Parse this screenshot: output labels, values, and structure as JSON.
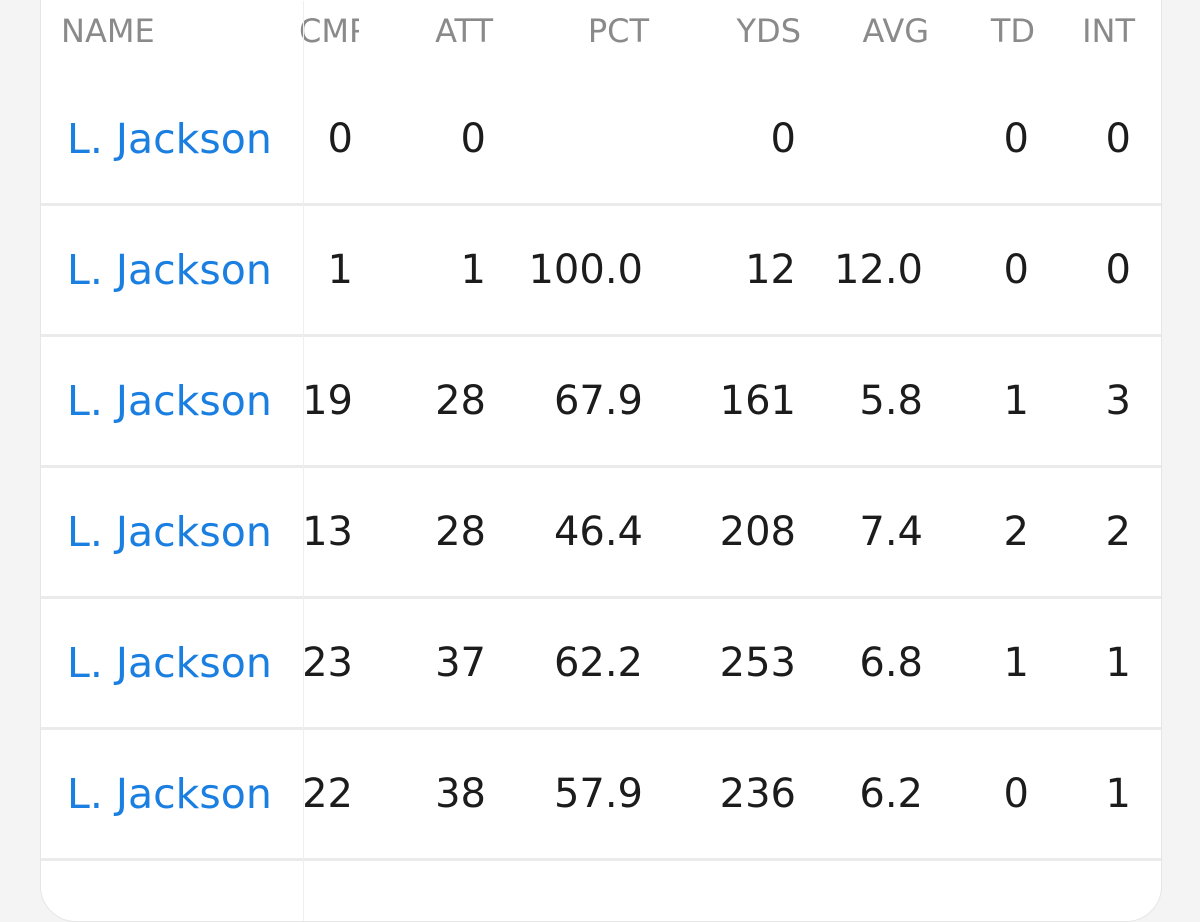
{
  "table": {
    "headers": {
      "name": "NAME",
      "cmp": "CMP",
      "att": "ATT",
      "pct": "PCT",
      "yds": "YDS",
      "avg": "AVG",
      "td": "TD",
      "int": "INT"
    },
    "rows": [
      {
        "name": "L. Jackson",
        "cmp": "0",
        "att": "0",
        "pct": "",
        "yds": "0",
        "avg": "",
        "td": "0",
        "int": "0"
      },
      {
        "name": "L. Jackson",
        "cmp": "1",
        "att": "1",
        "pct": "100.0",
        "yds": "12",
        "avg": "12.0",
        "td": "0",
        "int": "0"
      },
      {
        "name": "L. Jackson",
        "cmp": "19",
        "att": "28",
        "pct": "67.9",
        "yds": "161",
        "avg": "5.8",
        "td": "1",
        "int": "3"
      },
      {
        "name": "L. Jackson",
        "cmp": "13",
        "att": "28",
        "pct": "46.4",
        "yds": "208",
        "avg": "7.4",
        "td": "2",
        "int": "2"
      },
      {
        "name": "L. Jackson",
        "cmp": "23",
        "att": "37",
        "pct": "62.2",
        "yds": "253",
        "avg": "6.8",
        "td": "1",
        "int": "1"
      },
      {
        "name": "L. Jackson",
        "cmp": "22",
        "att": "38",
        "pct": "57.9",
        "yds": "236",
        "avg": "6.2",
        "td": "0",
        "int": "1"
      }
    ]
  },
  "colors": {
    "link": "#1a7fe0",
    "header_text": "#8a8a8a",
    "cell_text": "#1c1c1c",
    "divider": "#ebebeb"
  }
}
